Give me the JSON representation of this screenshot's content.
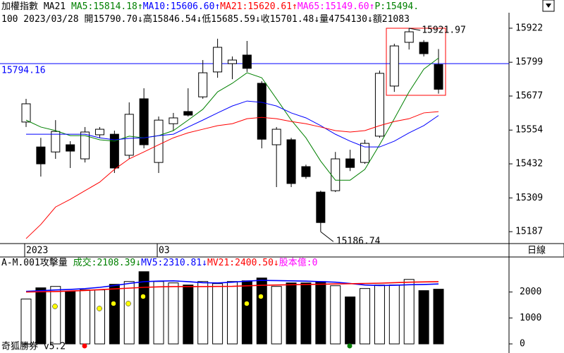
{
  "header": {
    "line1": [
      {
        "text": "加權指數 MA21 ",
        "color": "#000000"
      },
      {
        "text": "MA5:15814.18↑",
        "color": "#008000"
      },
      {
        "text": "MA10:15606.60↑",
        "color": "#0000ff"
      },
      {
        "text": "MA21:15620.61↑",
        "color": "#ff0000"
      },
      {
        "text": "MA65:15149.60↑",
        "color": "#ff00ff"
      },
      {
        "text": "P:15494.",
        "color": "#008000"
      }
    ],
    "line2": [
      {
        "text": "100 2023/03/28 開15790.70↓高15846.54↓低15685.59↓收15701.48↓量4754130↓額21083",
        "color": "#000000"
      }
    ]
  },
  "period_label": "日線",
  "footer": "奇狐勝券 v5.2",
  "chart_data": [
    {
      "type": "candlestick",
      "categories": [
        "2023",
        null,
        null,
        null,
        null,
        null,
        null,
        null,
        null,
        "03",
        null,
        null,
        null,
        null,
        null,
        null,
        null,
        null,
        null,
        null,
        null,
        null,
        null,
        null,
        null,
        null,
        null,
        null,
        null
      ],
      "open": [
        15583,
        15493,
        15475,
        15501,
        15450,
        15537,
        15539,
        15463,
        15667,
        15437,
        15577,
        15621,
        15674,
        15764,
        15794,
        15825,
        15723,
        15501,
        15519,
        15422,
        15330,
        15335,
        15450,
        15437,
        15532,
        15713,
        15871,
        15871,
        15790.7
      ],
      "high": [
        15667,
        15526,
        15590,
        15514,
        15565,
        15565,
        15552,
        15654,
        15705,
        15603,
        15616,
        15705,
        15807,
        15884,
        15820,
        15876,
        15731,
        15565,
        15526,
        15429,
        15335,
        15475,
        15483,
        15519,
        15769,
        15866,
        15921.97,
        15879,
        15846.54
      ],
      "low": [
        15565,
        15386,
        15450,
        15417,
        15437,
        15526,
        15399,
        15450,
        15488,
        15399,
        15552,
        15603,
        15667,
        15743,
        15738,
        15764,
        15488,
        15348,
        15348,
        15378,
        15186.74,
        15330,
        15406,
        15432,
        15526,
        15692,
        15845,
        15820,
        15685.59
      ],
      "close": [
        15649,
        15432,
        15549,
        15478,
        15547,
        15557,
        15417,
        15611,
        15501,
        15590,
        15598,
        15608,
        15761,
        15853,
        15807,
        15777,
        15521,
        15557,
        15361,
        15386,
        15220,
        15450,
        15419,
        15506,
        15759,
        15858,
        15909,
        15830,
        15701.48
      ],
      "up_color": "#ffffff",
      "down_color": "#000000",
      "series": [
        {
          "name": "MA5",
          "color": "#008000",
          "values": [
            15590,
            15565,
            15552,
            15534,
            15534,
            15519,
            15514,
            15532,
            15526,
            15534,
            15552,
            15590,
            15629,
            15692,
            15723,
            15761,
            15743,
            15667,
            15590,
            15526,
            15442,
            15373,
            15373,
            15412,
            15501,
            15595,
            15692,
            15774,
            15814.18
          ]
        },
        {
          "name": "MA10",
          "color": "#0000ff",
          "values": [
            15539,
            15539,
            15539,
            15539,
            15539,
            15526,
            15519,
            15524,
            15526,
            15534,
            15539,
            15565,
            15590,
            15616,
            15641,
            15659,
            15654,
            15641,
            15616,
            15598,
            15570,
            15539,
            15514,
            15493,
            15493,
            15514,
            15544,
            15570,
            15606.6
          ]
        },
        {
          "name": "MA21",
          "color": "#ff0000",
          "values": [
            15162,
            15213,
            15276,
            15304,
            15335,
            15366,
            15412,
            15450,
            15475,
            15501,
            15526,
            15544,
            15557,
            15570,
            15577,
            15595,
            15600,
            15595,
            15585,
            15577,
            15565,
            15552,
            15547,
            15552,
            15570,
            15585,
            15595,
            15616,
            15620.61
          ]
        }
      ],
      "ref_line": 15794.16,
      "ref_color": "#0000ff",
      "ylim": [
        15144,
        15978
      ],
      "yticks": [
        15922,
        15799,
        15677,
        15554,
        15432,
        15309,
        15187
      ]
    },
    {
      "type": "bar",
      "title": [
        {
          "text": "A-M.001攻擊量 ",
          "color": "#000000"
        },
        {
          "text": "成交:2108.39↓",
          "color": "#008000"
        },
        {
          "text": "MV5:2310.81↓",
          "color": "#0000ff"
        },
        {
          "text": "MV21:2400.50↓",
          "color": "#ff0000"
        },
        {
          "text": "股本億:0",
          "color": "#ff00ff"
        }
      ],
      "values": [
        1730,
        2162,
        2216,
        2027,
        2081,
        2081,
        2297,
        2405,
        2784,
        2405,
        2351,
        2270,
        2405,
        2324,
        2405,
        2432,
        2541,
        2216,
        2351,
        2351,
        2405,
        2243,
        1811,
        2135,
        2270,
        2270,
        2486,
        2054,
        2108.39
      ],
      "up_color": "#ffffff",
      "down_color": "#000000",
      "series": [
        {
          "name": "MV5",
          "color": "#0000ff",
          "values": [
            2027,
            2050,
            2080,
            2100,
            2130,
            2180,
            2250,
            2330,
            2400,
            2420,
            2430,
            2400,
            2360,
            2350,
            2380,
            2420,
            2450,
            2440,
            2430,
            2420,
            2400,
            2380,
            2330,
            2270,
            2250,
            2260,
            2280,
            2290,
            2310.81
          ]
        },
        {
          "name": "MV21",
          "color": "#ff0000",
          "values": [
            2000,
            2010,
            2020,
            2040,
            2060,
            2090,
            2120,
            2150,
            2180,
            2200,
            2210,
            2210,
            2210,
            2215,
            2220,
            2240,
            2260,
            2270,
            2280,
            2290,
            2300,
            2310,
            2320,
            2330,
            2340,
            2360,
            2380,
            2390,
            2400.5
          ]
        }
      ],
      "ylim": [
        -270,
        3351
      ],
      "yticks": [
        0,
        1000,
        2000
      ]
    }
  ]
}
